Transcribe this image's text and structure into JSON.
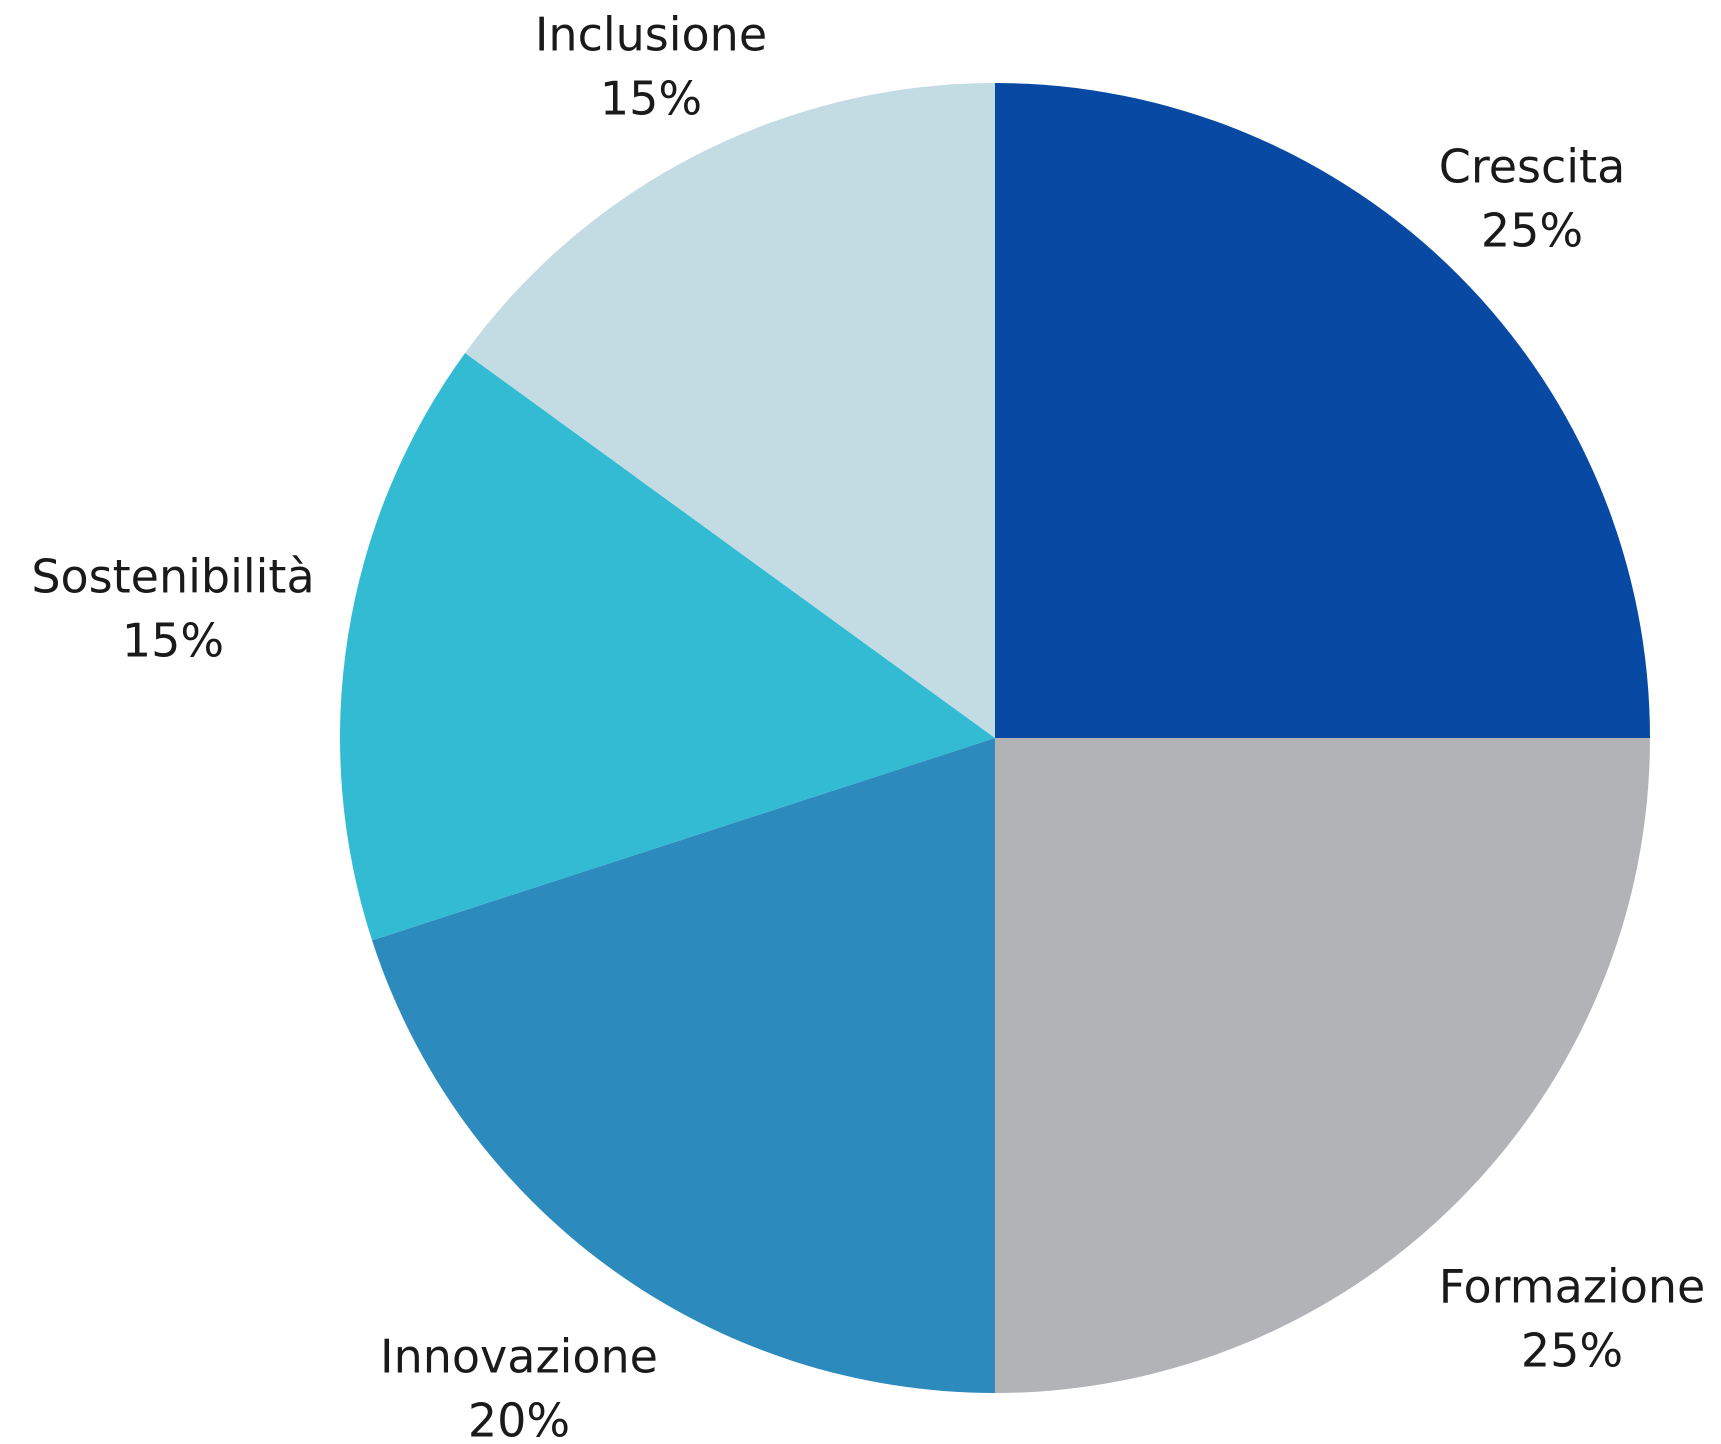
{
  "chart_data": {
    "type": "pie",
    "title": "",
    "start_angle_deg": 90,
    "direction": "clockwise",
    "legend": "none",
    "slices": [
      {
        "label": "Crescita",
        "value": 25,
        "value_label": "25%",
        "color": "#0849A3"
      },
      {
        "label": "Formazione",
        "value": 25,
        "value_label": "25%",
        "color": "#B2B3B7"
      },
      {
        "label": "Innovazione",
        "value": 20,
        "value_label": "20%",
        "color": "#2D8ABD"
      },
      {
        "label": "Sostenibilità",
        "value": 15,
        "value_label": "15%",
        "color": "#33BBD4"
      },
      {
        "label": "Inclusione",
        "value": 15,
        "value_label": "15%",
        "color": "#C3DBE3"
      }
    ]
  }
}
